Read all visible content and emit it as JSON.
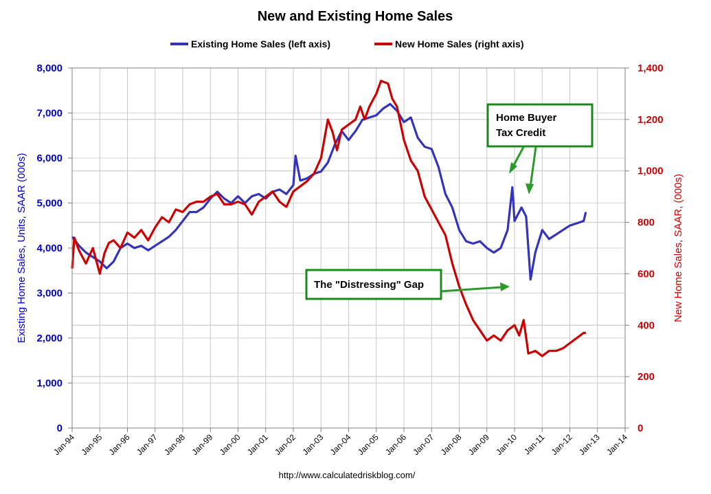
{
  "chart_data": {
    "type": "line",
    "title": "New and Existing Home Sales",
    "source": "http://www.calculatedriskblog.com/",
    "x_axis": {
      "ticks": [
        "Jan-94",
        "Jan-95",
        "Jan-96",
        "Jan-97",
        "Jan-98",
        "Jan-99",
        "Jan-00",
        "Jan-01",
        "Jan-02",
        "Jan-03",
        "Jan-04",
        "Jan-05",
        "Jan-06",
        "Jan-07",
        "Jan-08",
        "Jan-09",
        "Jan-10",
        "Jan-11",
        "Jan-12",
        "Jan-13",
        "Jan-14"
      ],
      "range": [
        1994,
        2014
      ]
    },
    "y_left": {
      "label": "Existing Home Sales, Units, SAAR (000s)",
      "range": [
        0,
        8000
      ],
      "ticks": [
        "0",
        "1,000",
        "2,000",
        "3,000",
        "4,000",
        "5,000",
        "6,000",
        "7,000",
        "8,000"
      ],
      "color": "#0000CC"
    },
    "y_right": {
      "label": "New Home Sales, SAAR, (000s)",
      "range": [
        0,
        1400
      ],
      "ticks": [
        "0",
        "200",
        "400",
        "600",
        "800",
        "1,000",
        "1,200",
        "1,400"
      ],
      "color": "#CC0000"
    },
    "series": [
      {
        "name": "Existing Home Sales (left axis)",
        "axis": "left",
        "color": "#3333BB",
        "x": [
          1994.0,
          1994.25,
          1994.5,
          1994.75,
          1995.0,
          1995.25,
          1995.5,
          1995.75,
          1996.0,
          1996.25,
          1996.5,
          1996.75,
          1997.0,
          1997.25,
          1997.5,
          1997.75,
          1998.0,
          1998.25,
          1998.5,
          1998.75,
          1999.0,
          1999.25,
          1999.5,
          1999.75,
          2000.0,
          2000.25,
          2000.5,
          2000.75,
          2001.0,
          2001.25,
          2001.5,
          2001.75,
          2002.0,
          2002.08,
          2002.25,
          2002.5,
          2002.75,
          2003.0,
          2003.25,
          2003.5,
          2003.75,
          2004.0,
          2004.25,
          2004.5,
          2004.75,
          2005.0,
          2005.25,
          2005.5,
          2005.75,
          2006.0,
          2006.25,
          2006.5,
          2006.75,
          2007.0,
          2007.25,
          2007.5,
          2007.75,
          2008.0,
          2008.25,
          2008.5,
          2008.75,
          2009.0,
          2009.25,
          2009.5,
          2009.75,
          2009.92,
          2010.0,
          2010.25,
          2010.42,
          2010.58,
          2010.75,
          2011.0,
          2011.25,
          2011.5,
          2011.75,
          2012.0,
          2012.25,
          2012.5,
          2012.58
        ],
        "values": [
          4250,
          4050,
          3900,
          3800,
          3700,
          3550,
          3700,
          4000,
          4100,
          4000,
          4050,
          3950,
          4050,
          4150,
          4250,
          4400,
          4600,
          4800,
          4800,
          4900,
          5100,
          5250,
          5100,
          5000,
          5150,
          5000,
          5150,
          5200,
          5100,
          5250,
          5300,
          5200,
          5400,
          6050,
          5500,
          5550,
          5650,
          5700,
          5900,
          6300,
          6600,
          6400,
          6600,
          6850,
          6900,
          6950,
          7100,
          7200,
          7050,
          6800,
          6900,
          6450,
          6250,
          6200,
          5800,
          5200,
          4900,
          4400,
          4150,
          4100,
          4150,
          4000,
          3900,
          4000,
          4400,
          5350,
          4600,
          4900,
          4700,
          3300,
          3900,
          4400,
          4200,
          4300,
          4400,
          4500,
          4550,
          4600,
          4800
        ]
      },
      {
        "name": "New Home Sales (right axis)",
        "axis": "right",
        "color": "#CC0000",
        "x": [
          1994.0,
          1994.08,
          1994.25,
          1994.5,
          1994.75,
          1995.0,
          1995.17,
          1995.33,
          1995.5,
          1995.75,
          1996.0,
          1996.25,
          1996.5,
          1996.75,
          1997.0,
          1997.25,
          1997.5,
          1997.75,
          1998.0,
          1998.25,
          1998.5,
          1998.75,
          1999.0,
          1999.25,
          1999.5,
          1999.75,
          2000.0,
          2000.25,
          2000.5,
          2000.75,
          2001.0,
          2001.25,
          2001.5,
          2001.75,
          2002.0,
          2002.25,
          2002.5,
          2002.75,
          2003.0,
          2003.25,
          2003.42,
          2003.58,
          2003.75,
          2004.0,
          2004.25,
          2004.42,
          2004.58,
          2004.75,
          2005.0,
          2005.17,
          2005.42,
          2005.58,
          2005.75,
          2006.0,
          2006.25,
          2006.5,
          2006.75,
          2007.0,
          2007.25,
          2007.5,
          2007.75,
          2008.0,
          2008.25,
          2008.5,
          2008.75,
          2009.0,
          2009.25,
          2009.5,
          2009.75,
          2010.0,
          2010.17,
          2010.33,
          2010.5,
          2010.75,
          2011.0,
          2011.25,
          2011.5,
          2011.75,
          2012.0,
          2012.25,
          2012.5,
          2012.58
        ],
        "values": [
          620,
          740,
          690,
          640,
          700,
          600,
          680,
          720,
          730,
          700,
          760,
          740,
          770,
          730,
          780,
          820,
          800,
          850,
          840,
          870,
          880,
          880,
          900,
          910,
          870,
          870,
          880,
          870,
          830,
          880,
          900,
          920,
          880,
          860,
          920,
          940,
          960,
          990,
          1050,
          1200,
          1150,
          1080,
          1160,
          1180,
          1200,
          1250,
          1200,
          1250,
          1300,
          1350,
          1340,
          1280,
          1250,
          1120,
          1040,
          1000,
          900,
          850,
          800,
          750,
          640,
          550,
          480,
          420,
          380,
          340,
          360,
          340,
          380,
          400,
          360,
          420,
          290,
          300,
          280,
          300,
          300,
          310,
          330,
          350,
          370,
          370
        ]
      }
    ],
    "annotations": [
      {
        "text_lines": [
          "Home Buyer",
          "Tax Credit"
        ]
      },
      {
        "text_lines": [
          "The \"Distressing\" Gap"
        ]
      }
    ],
    "grid": true,
    "legend_position": "top-center"
  }
}
